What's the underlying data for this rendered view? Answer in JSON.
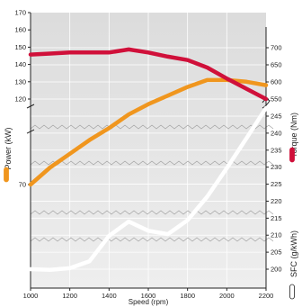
{
  "chart_data": {
    "type": "line",
    "xlabel": "Speed (rpm)",
    "x_ticks": [
      1000,
      1200,
      1400,
      1600,
      1800,
      2000,
      2200
    ],
    "xlim": [
      1000,
      2200
    ],
    "left_axis": {
      "label": "Power (kW)",
      "lower_ticks": [
        70
      ],
      "upper_ticks": [
        120,
        130,
        140,
        150,
        160,
        170
      ],
      "break_between": [
        70,
        120
      ]
    },
    "right_axis": {
      "upper_label": "Torque (Nm)",
      "upper_ticks": [
        550,
        600,
        650,
        700
      ],
      "lower_label": "SFC (g/kWh)",
      "lower_ticks": [
        200,
        205,
        210,
        215,
        220,
        225,
        230,
        235,
        240,
        245
      ]
    },
    "series": [
      {
        "name": "Power (kW)",
        "axis": "left",
        "color": "#f0961e",
        "x": [
          1000,
          1100,
          1200,
          1300,
          1400,
          1500,
          1600,
          1700,
          1800,
          1900,
          2000,
          2100,
          2200
        ],
        "values": [
          70,
          80,
          88,
          96,
          103,
          111,
          117,
          122,
          127,
          131,
          131,
          130,
          128
        ]
      },
      {
        "name": "Torque (Nm)",
        "axis": "right-upper",
        "color": "#d0103a",
        "x": [
          1000,
          1100,
          1200,
          1300,
          1400,
          1500,
          1600,
          1700,
          1800,
          1900,
          2000,
          2100,
          2200
        ],
        "values": [
          680,
          683,
          686,
          686,
          686,
          695,
          686,
          674,
          664,
          642,
          610,
          580,
          550
        ]
      },
      {
        "name": "SFC (g/kWh)",
        "axis": "right-lower",
        "color": "#ffffff",
        "x": [
          1000,
          1100,
          1200,
          1300,
          1400,
          1500,
          1600,
          1700,
          1800,
          1900,
          2000,
          2100,
          2200
        ],
        "values": [
          200,
          199.8,
          200.3,
          202.3,
          209.8,
          214,
          211.3,
          210.3,
          214.4,
          221.3,
          229.7,
          238.5,
          247.4
        ]
      }
    ],
    "grid": true,
    "background": "gradient-gray"
  }
}
